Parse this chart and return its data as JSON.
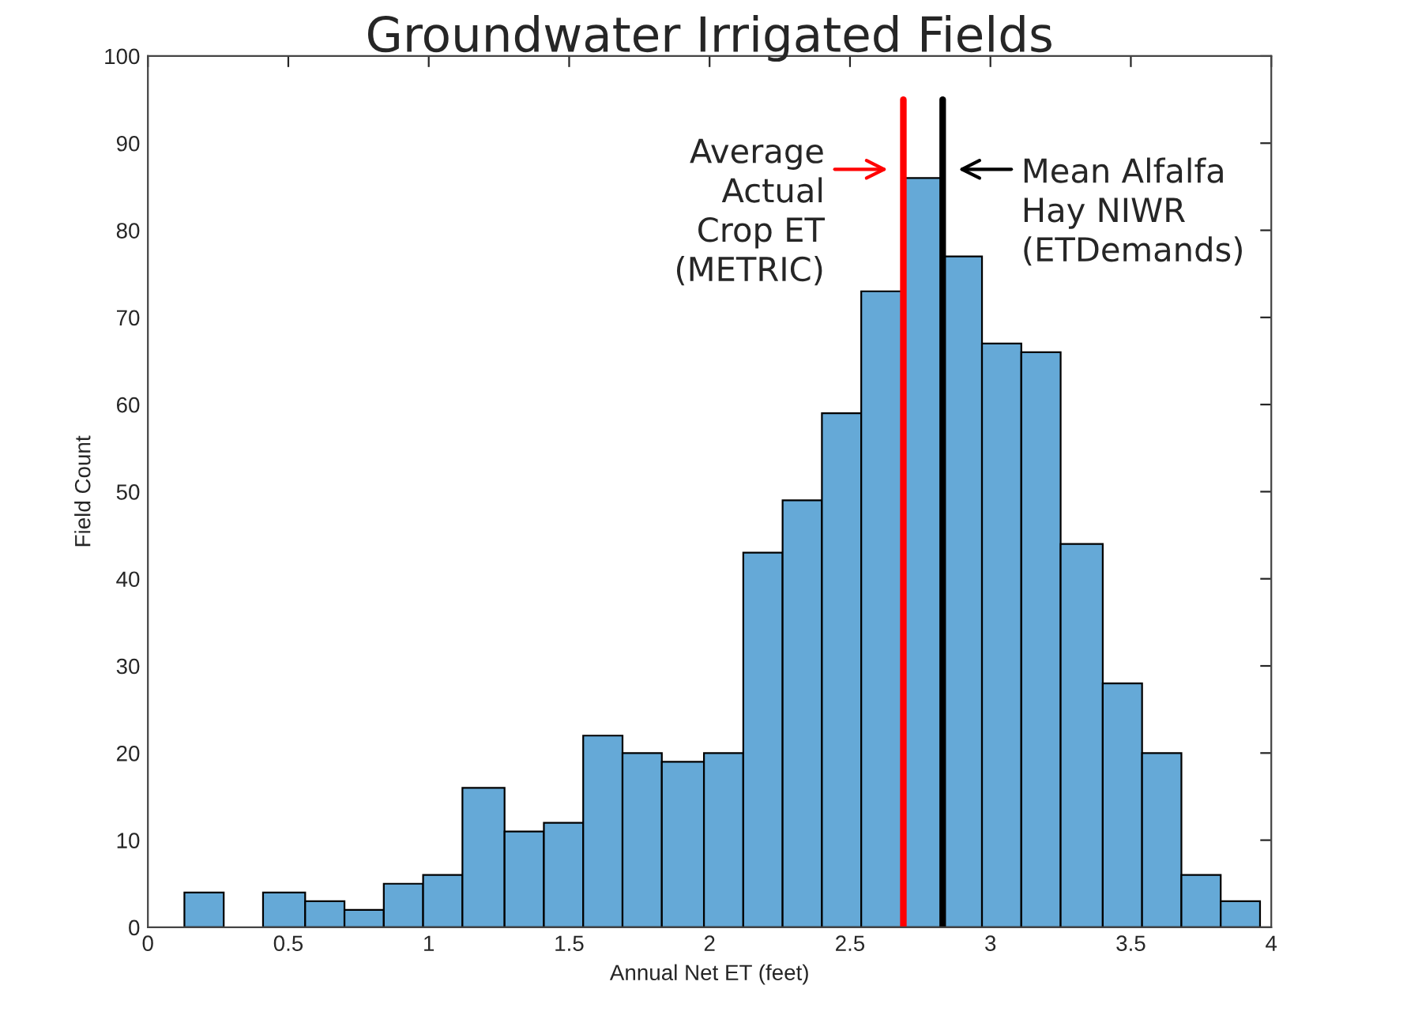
{
  "chart_data": {
    "type": "histogram",
    "title": "Groundwater Irrigated Fields",
    "xlabel": "Annual Net ET (feet)",
    "ylabel": "Field Count",
    "bins": [
      0.13,
      0.27,
      0.41,
      0.56,
      0.7,
      0.84,
      0.98,
      1.12,
      1.27,
      1.41,
      1.55,
      1.69,
      1.83,
      1.98,
      2.12,
      2.26,
      2.4,
      2.54,
      2.69,
      2.83,
      2.97,
      3.11,
      3.25,
      3.4,
      3.54,
      3.68,
      3.82,
      3.96
    ],
    "values": [
      4,
      0,
      4,
      3,
      2,
      5,
      6,
      16,
      11,
      12,
      22,
      20,
      19,
      20,
      43,
      49,
      59,
      73,
      86,
      77,
      67,
      66,
      44,
      28,
      20,
      6,
      3
    ],
    "color": "#65a9d7",
    "xlim": [
      0,
      4
    ],
    "xticks": [
      0,
      {
        "value": 0.5,
        "label": "0.5"
      },
      1,
      {
        "value": 1.5,
        "label": "1.5"
      },
      2,
      {
        "value": 2.5,
        "label": "2.5"
      },
      3,
      {
        "value": 3.5,
        "label": "3.5"
      },
      4
    ],
    "ylim": [
      0,
      100
    ],
    "yticks": [
      0,
      10,
      20,
      30,
      40,
      50,
      60,
      70,
      80,
      90,
      100
    ],
    "ref_lines": [
      {
        "axis": "x",
        "value": 2.69,
        "label": "Average\nActual\nCrop ET\n(METRIC)",
        "color": "#ff0000"
      },
      {
        "axis": "x",
        "value": 2.83,
        "label": "Mean Alfalfa\nHay NIWR\n(ETDemands)",
        "color": "#000000"
      }
    ],
    "grid": false,
    "legend": false
  }
}
